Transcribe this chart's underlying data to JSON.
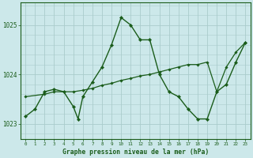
{
  "bg_color": "#cce8ea",
  "grid_color": "#aacccc",
  "line_color": "#1a5c1a",
  "title": "Graphe pression niveau de la mer (hPa)",
  "xlabel_ticks": [
    0,
    1,
    2,
    3,
    4,
    5,
    6,
    7,
    8,
    9,
    10,
    11,
    12,
    13,
    14,
    15,
    16,
    17,
    18,
    19,
    20,
    21,
    22,
    23
  ],
  "ylim": [
    1022.7,
    1025.45
  ],
  "yticks": [
    1023,
    1024,
    1025
  ],
  "series1_x": [
    0,
    1,
    2,
    3,
    4,
    5,
    5.5,
    6,
    7,
    8,
    9,
    10,
    11,
    12,
    13,
    14,
    15,
    16,
    17,
    18,
    19,
    20,
    21,
    22,
    23
  ],
  "series1_y": [
    1023.15,
    1023.3,
    1023.65,
    1023.7,
    1023.65,
    1023.35,
    1023.1,
    1023.55,
    1023.85,
    1024.15,
    1024.6,
    1025.15,
    1025.0,
    1024.7,
    1024.7,
    1024.0,
    1023.65,
    1023.55,
    1023.3,
    1023.1,
    1023.1,
    1023.65,
    1023.8,
    1024.25,
    1024.65
  ],
  "series2_x": [
    0,
    2,
    3,
    5,
    6,
    7,
    8,
    9,
    10,
    11,
    12,
    13,
    14,
    15,
    16,
    17,
    18,
    19,
    20,
    21,
    22,
    23
  ],
  "series2_y": [
    1023.55,
    1023.6,
    1023.65,
    1023.65,
    1023.68,
    1023.72,
    1023.78,
    1023.82,
    1023.88,
    1023.92,
    1023.97,
    1024.0,
    1024.05,
    1024.1,
    1024.15,
    1024.2,
    1024.2,
    1024.25,
    1023.65,
    1024.15,
    1024.45,
    1024.65
  ]
}
